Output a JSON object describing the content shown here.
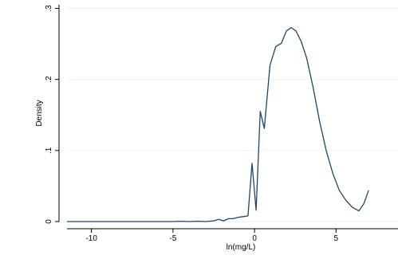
{
  "chart_data": {
    "type": "line",
    "title": "",
    "xlabel": "ln(mg/L)",
    "ylabel": "Density",
    "xlim": [
      -11.5,
      8.8
    ],
    "ylim": [
      0,
      0.3
    ],
    "xticks": [
      -10,
      -5,
      0,
      5
    ],
    "xtick_labels": [
      "-10",
      "-5",
      "0",
      "5"
    ],
    "yticks": [
      0,
      0.1,
      0.2,
      0.3
    ],
    "ytick_labels": [
      "0",
      ".1",
      ".2",
      ".3"
    ],
    "grid": "horizontal",
    "legend": "none",
    "line_color": "#1a476f",
    "series": [
      {
        "x": [
          -11.5,
          -10,
          -8,
          -6,
          -5,
          -4.5,
          -4,
          -3.5,
          -3,
          -2.5,
          -2.2,
          -1.9,
          -1.6,
          -1.3,
          -1,
          -0.7,
          -0.4,
          -0.15,
          0.1,
          0.35,
          0.6,
          0.95,
          1.3,
          1.65,
          1.95,
          2.25,
          2.55,
          2.85,
          3.2,
          3.6,
          4.0,
          4.4,
          4.8,
          5.2,
          5.6,
          6.0,
          6.4,
          6.7,
          7.0
        ],
        "y": [
          0,
          0,
          0,
          0,
          0,
          0.0005,
          0,
          0.0005,
          0,
          0.001,
          0.003,
          0.001,
          0.004,
          0.004,
          0.006,
          0.007,
          0.008,
          0.082,
          0.016,
          0.155,
          0.131,
          0.22,
          0.246,
          0.251,
          0.268,
          0.273,
          0.268,
          0.254,
          0.23,
          0.188,
          0.14,
          0.1,
          0.068,
          0.044,
          0.03,
          0.02,
          0.015,
          0.025,
          0.044
        ]
      }
    ]
  }
}
